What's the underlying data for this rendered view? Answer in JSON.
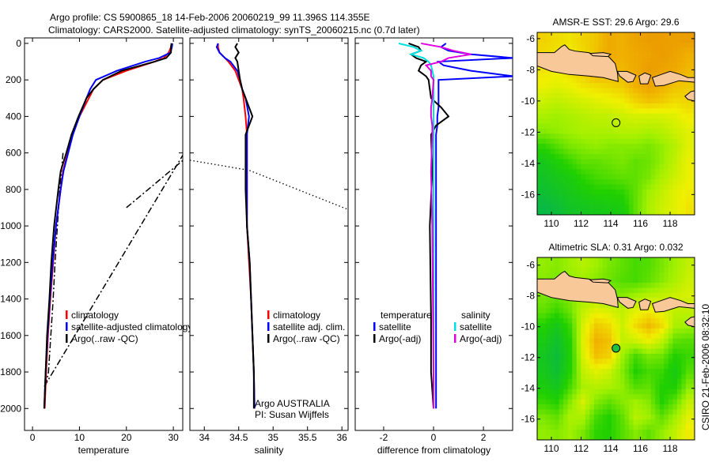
{
  "title": {
    "line1": "Argo profile: CS 5900865_18 14-Feb-2006 20060219_99 11.396S 114.355E",
    "line2": "Climatology: CARS2000. Satellite-adjusted climatology: synTS_20060215.nc (0.7d later)"
  },
  "footer_stamp": "CSIRO 21-Feb-2006 08:32:10",
  "chart_data": [
    {
      "type": "line",
      "id": "temperature",
      "xlabel": "temperature",
      "ylabel": "",
      "xlim": [
        -1.7,
        32
      ],
      "ylim": [
        2120,
        -30
      ],
      "xticks": [
        0,
        10,
        20,
        30
      ],
      "yticks": [
        0,
        200,
        400,
        600,
        800,
        1000,
        1200,
        1400,
        1600,
        1800,
        2000
      ],
      "depth": [
        0,
        20,
        50,
        80,
        100,
        150,
        200,
        250,
        300,
        400,
        500,
        600,
        700,
        800,
        1000,
        1200,
        1400,
        1600,
        1800,
        2000
      ],
      "series": [
        {
          "name": "climatology",
          "color": "#ff0000",
          "values": [
            29.6,
            29.5,
            29,
            28,
            26,
            20,
            15,
            13,
            12,
            10,
            8.5,
            7.5,
            6.5,
            6,
            5,
            4.4,
            3.8,
            3.3,
            2.9,
            2.6
          ]
        },
        {
          "name": "satellite-adjusted climatology",
          "color": "#0000ff",
          "values": [
            29.8,
            29.7,
            29.4,
            27,
            24,
            18,
            13.5,
            12.3,
            11.5,
            10,
            8.6,
            7.6,
            6.6,
            6,
            5,
            4.3,
            3.7,
            3.2,
            2.8,
            2.5
          ]
        },
        {
          "name": "Argo(..raw -QC)",
          "color": "#000000",
          "values": [
            29.6,
            29.5,
            29.5,
            28.5,
            26,
            19,
            15,
            13,
            11.5,
            9.8,
            8.3,
            7.2,
            6,
            5.5,
            4.6,
            4,
            3.6,
            3.1,
            2.8,
            2.5
          ]
        }
      ],
      "extra_lines": [
        {
          "style": "dashdot",
          "points": [
            [
              6.5,
              600
            ],
            [
              5.8,
              800
            ],
            [
              5.3,
              1000
            ],
            [
              4.8,
              1200
            ],
            [
              4.4,
              1400
            ],
            [
              3.9,
              1600
            ],
            [
              3.4,
              1800
            ],
            [
              2.6,
              1900
            ]
          ]
        },
        {
          "style": "dashdot",
          "points": [
            [
              2.5,
              1880
            ],
            [
              33,
              570
            ]
          ]
        },
        {
          "style": "dashdot",
          "points": [
            [
              20,
              900
            ],
            [
              33,
              620
            ]
          ]
        }
      ],
      "legend": {
        "placement": "lower-center",
        "entries": [
          "climatology",
          "satellite-adjusted climatology",
          "Argo(..raw -QC)"
        ]
      }
    },
    {
      "type": "line",
      "id": "salinity",
      "xlabel": "salinity",
      "xlim": [
        33.79,
        36.09
      ],
      "ylim": [
        2120,
        -30
      ],
      "xticks": [
        34,
        34.5,
        35,
        35.5,
        36
      ],
      "depth": [
        0,
        20,
        50,
        80,
        100,
        150,
        200,
        250,
        300,
        400,
        500,
        600,
        700,
        800,
        1000,
        1200,
        1400,
        1600,
        1800,
        2000
      ],
      "series": [
        {
          "name": "climatology",
          "color": "#ff0000",
          "values": [
            34.2,
            34.2,
            34.22,
            34.3,
            34.35,
            34.45,
            34.5,
            34.55,
            34.57,
            34.6,
            34.62,
            34.62,
            34.62,
            34.62,
            34.62,
            34.65,
            34.68,
            34.7,
            34.72,
            34.73
          ]
        },
        {
          "name": "satellite adj. clim.",
          "color": "#0000ff",
          "values": [
            34.2,
            34.18,
            34.22,
            34.3,
            34.38,
            34.48,
            34.52,
            34.55,
            34.6,
            34.65,
            34.62,
            34.62,
            34.62,
            34.62,
            34.62,
            34.66,
            34.68,
            34.7,
            34.72,
            34.73
          ]
        },
        {
          "name": "Argo(..raw -QC)",
          "color": "#000000",
          "values": [
            34.48,
            34.45,
            34.5,
            34.45,
            34.48,
            34.5,
            34.52,
            34.55,
            34.6,
            34.7,
            34.6,
            34.6,
            34.6,
            34.6,
            34.62,
            34.66,
            34.68,
            34.7,
            34.72,
            34.72
          ]
        }
      ],
      "extra_lines": [
        {
          "style": "dotted",
          "points": [
            [
              33.79,
              640
            ],
            [
              34.65,
              695
            ],
            [
              36.09,
              910
            ]
          ]
        }
      ],
      "legend": {
        "placement": "lower-center",
        "entries": [
          "climatology",
          "satellite adj. clim.",
          "Argo(..raw -QC)"
        ]
      },
      "annotation": [
        "Argo AUSTRALIA",
        "PI: Susan Wijffels"
      ]
    },
    {
      "type": "line",
      "id": "difference",
      "xlabel": "difference from climatology",
      "xlim": [
        -3.14,
        3.17
      ],
      "ylim": [
        2120,
        -30
      ],
      "xticks": [
        -2,
        0,
        2
      ],
      "depth": [
        0,
        20,
        40,
        60,
        80,
        100,
        120,
        150,
        180,
        200,
        300,
        350,
        400,
        450,
        500,
        700,
        1000,
        1500,
        1800,
        2000
      ],
      "series": [
        {
          "name": "temperature satellite",
          "color": "#0000ff",
          "values": [
            0.5,
            0.3,
            0.6,
            1.5,
            3.2,
            0.2,
            0.4,
            1.5,
            3.2,
            0.2,
            0.2,
            0.2,
            0.15,
            0.15,
            0.1,
            0.1,
            0.1,
            0.1,
            0.1,
            0.1
          ]
        },
        {
          "name": "temperature Argo(-adj)",
          "color": "#000000",
          "values": [
            -1,
            -0.6,
            -0.5,
            -0.9,
            -0.7,
            -0.3,
            -0.5,
            -0.6,
            -0.3,
            -0.2,
            -0.1,
            0.3,
            0.6,
            0.1,
            -0.1,
            -0.05,
            -0.15,
            -0.1,
            -0.1,
            0
          ]
        },
        {
          "name": "salinity satellite",
          "color": "#00e0e0",
          "values": [
            -1.4,
            -0.8,
            -0.5,
            -0.9,
            -0.4,
            -0.2,
            -0.1,
            -0.05,
            0,
            0,
            0,
            0,
            0,
            0,
            0,
            0,
            0,
            0,
            0,
            0
          ]
        },
        {
          "name": "salinity Argo(-adj)",
          "color": "#e000e0",
          "values": [
            -0.5,
            0.3,
            0.8,
            1.5,
            0.6,
            0.3,
            -0.3,
            -0.1,
            -0.1,
            0,
            -0.05,
            -0.1,
            -0.1,
            -0.05,
            -0.05,
            -0.1,
            -0.05,
            -0.02,
            0,
            0
          ]
        }
      ],
      "legend": {
        "placement": "lower-center",
        "temperature_heading": "temperature",
        "salinity_heading": "salinity",
        "entries": [
          "satellite",
          "Argo(-adj)",
          "satellite",
          "Argo(-adj)"
        ]
      }
    },
    {
      "type": "heatmap",
      "id": "sst_map",
      "title": "AMSR-E SST: 29.6 Argo: 29.6",
      "xlim": [
        109.04,
        119.65
      ],
      "ylim": [
        -17.3,
        -5.6
      ],
      "xticks": [
        110,
        112,
        114,
        116,
        118
      ],
      "yticks": [
        -6,
        -8,
        -10,
        -12,
        -14,
        -16
      ],
      "marker": {
        "lon": 114.355,
        "lat": -11.396,
        "filled": false
      },
      "grid": [
        [
          0.72,
          0.7,
          0.68,
          0.72,
          0.75,
          0.82,
          0.8,
          0.84,
          0.86,
          0.86,
          0.85,
          0.86
        ],
        [
          0.7,
          0.68,
          0.66,
          0.7,
          0.76,
          0.82,
          0.8,
          0.82,
          0.84,
          0.86,
          0.84,
          0.8
        ],
        [
          0.68,
          0.66,
          0.7,
          0.74,
          0.84,
          0.8,
          0.78,
          0.82,
          0.86,
          0.84,
          0.82,
          0.78
        ],
        [
          0.64,
          0.62,
          0.64,
          0.68,
          0.7,
          0.72,
          0.74,
          0.8,
          0.84,
          0.8,
          0.76,
          0.74
        ],
        [
          0.58,
          0.56,
          0.58,
          0.6,
          0.62,
          0.64,
          0.66,
          0.72,
          0.76,
          0.74,
          0.7,
          0.72
        ],
        [
          0.52,
          0.5,
          0.52,
          0.54,
          0.56,
          0.56,
          0.58,
          0.6,
          0.6,
          0.6,
          0.62,
          0.66
        ],
        [
          0.46,
          0.48,
          0.5,
          0.52,
          0.52,
          0.52,
          0.54,
          0.54,
          0.52,
          0.54,
          0.58,
          0.62
        ],
        [
          0.32,
          0.38,
          0.44,
          0.46,
          0.48,
          0.46,
          0.46,
          0.46,
          0.44,
          0.48,
          0.54,
          0.62
        ],
        [
          0.22,
          0.28,
          0.34,
          0.4,
          0.4,
          0.42,
          0.44,
          0.4,
          0.42,
          0.48,
          0.56,
          0.64
        ],
        [
          0.18,
          0.22,
          0.26,
          0.32,
          0.36,
          0.38,
          0.4,
          0.4,
          0.44,
          0.52,
          0.58,
          0.64
        ],
        [
          0.14,
          0.18,
          0.22,
          0.26,
          0.3,
          0.3,
          0.32,
          0.4,
          0.5,
          0.56,
          0.62,
          0.66
        ],
        [
          0.08,
          0.12,
          0.18,
          0.2,
          0.22,
          0.24,
          0.26,
          0.4,
          0.52,
          0.58,
          0.62,
          0.68
        ]
      ]
    },
    {
      "type": "heatmap",
      "id": "sla_map",
      "title": "Altimetric SLA: 0.31 Argo: 0.032",
      "xlim": [
        109.04,
        119.65
      ],
      "ylim": [
        -17.35,
        -5.5
      ],
      "xticks": [
        110,
        112,
        114,
        116,
        118
      ],
      "yticks": [
        -6,
        -8,
        -10,
        -12,
        -14,
        -16
      ],
      "marker": {
        "lon": 114.355,
        "lat": -11.396,
        "filled": true
      },
      "grid": [
        [
          0.48,
          0.46,
          0.5,
          0.54,
          0.5,
          0.44,
          0.4,
          0.36,
          0.38,
          0.44,
          0.5,
          0.56
        ],
        [
          0.46,
          0.44,
          0.48,
          0.5,
          0.46,
          0.42,
          0.38,
          0.36,
          0.4,
          0.46,
          0.52,
          0.58
        ],
        [
          0.44,
          0.42,
          0.46,
          0.5,
          0.5,
          0.46,
          0.46,
          0.5,
          0.54,
          0.56,
          0.58,
          0.6
        ],
        [
          0.4,
          0.34,
          0.42,
          0.56,
          0.62,
          0.6,
          0.56,
          0.62,
          0.66,
          0.62,
          0.56,
          0.56
        ],
        [
          0.3,
          0.22,
          0.34,
          0.6,
          0.74,
          0.7,
          0.58,
          0.7,
          0.78,
          0.7,
          0.52,
          0.5
        ],
        [
          0.24,
          0.16,
          0.3,
          0.62,
          0.8,
          0.76,
          0.56,
          0.58,
          0.64,
          0.56,
          0.4,
          0.38
        ],
        [
          0.2,
          0.12,
          0.28,
          0.6,
          0.76,
          0.72,
          0.5,
          0.36,
          0.44,
          0.42,
          0.3,
          0.34
        ],
        [
          0.22,
          0.14,
          0.3,
          0.56,
          0.62,
          0.58,
          0.46,
          0.3,
          0.36,
          0.34,
          0.24,
          0.38
        ],
        [
          0.26,
          0.2,
          0.36,
          0.52,
          0.54,
          0.52,
          0.48,
          0.38,
          0.4,
          0.3,
          0.28,
          0.46
        ],
        [
          0.34,
          0.3,
          0.46,
          0.6,
          0.46,
          0.4,
          0.46,
          0.5,
          0.46,
          0.3,
          0.4,
          0.56
        ],
        [
          0.44,
          0.4,
          0.52,
          0.52,
          0.36,
          0.3,
          0.4,
          0.54,
          0.5,
          0.4,
          0.5,
          0.62
        ],
        [
          0.48,
          0.46,
          0.5,
          0.44,
          0.32,
          0.3,
          0.38,
          0.46,
          0.4,
          0.48,
          0.56,
          0.66
        ]
      ]
    }
  ],
  "coastlines": [
    [
      [
        109.04,
        -6.9
      ],
      [
        110.2,
        -6.9
      ],
      [
        110.7,
        -6.5
      ],
      [
        110.9,
        -6.4
      ],
      [
        111.2,
        -6.7
      ],
      [
        111.6,
        -6.8
      ],
      [
        112.5,
        -6.9
      ],
      [
        113.0,
        -7.05
      ],
      [
        113.8,
        -7.1
      ],
      [
        114.3,
        -7.6
      ],
      [
        114.45,
        -8.2
      ],
      [
        114.5,
        -8.75
      ],
      [
        113.5,
        -8.5
      ],
      [
        112.5,
        -8.4
      ],
      [
        111.2,
        -8.3
      ],
      [
        110.0,
        -8.1
      ],
      [
        109.04,
        -7.75
      ]
    ],
    [
      [
        112.6,
        -6.95
      ],
      [
        113.5,
        -6.9
      ],
      [
        114.0,
        -7.0
      ],
      [
        113.8,
        -7.15
      ],
      [
        112.8,
        -7.1
      ]
    ],
    [
      [
        114.45,
        -8.1
      ],
      [
        115.1,
        -8.1
      ],
      [
        115.7,
        -8.35
      ],
      [
        115.5,
        -8.75
      ],
      [
        115.15,
        -8.8
      ],
      [
        114.6,
        -8.4
      ]
    ],
    [
      [
        115.9,
        -8.4
      ],
      [
        116.3,
        -8.2
      ],
      [
        116.7,
        -8.35
      ],
      [
        116.5,
        -8.9
      ],
      [
        116.0,
        -8.9
      ]
    ],
    [
      [
        116.8,
        -8.5
      ],
      [
        117.4,
        -8.3
      ],
      [
        118.0,
        -8.1
      ],
      [
        118.7,
        -8.3
      ],
      [
        119.2,
        -8.5
      ],
      [
        119.65,
        -8.5
      ],
      [
        119.65,
        -8.8
      ],
      [
        118.6,
        -8.7
      ],
      [
        117.6,
        -9.0
      ],
      [
        117.0,
        -9.05
      ]
    ],
    [
      [
        119.0,
        -9.7
      ],
      [
        119.4,
        -9.4
      ],
      [
        119.65,
        -9.35
      ],
      [
        119.65,
        -10.0
      ],
      [
        119.2,
        -9.9
      ]
    ]
  ]
}
